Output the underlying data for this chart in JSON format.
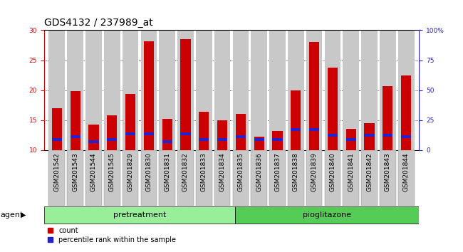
{
  "title": "GDS4132 / 237989_at",
  "samples": [
    "GSM201542",
    "GSM201543",
    "GSM201544",
    "GSM201545",
    "GSM201829",
    "GSM201830",
    "GSM201831",
    "GSM201832",
    "GSM201833",
    "GSM201834",
    "GSM201835",
    "GSM201836",
    "GSM201837",
    "GSM201838",
    "GSM201839",
    "GSM201840",
    "GSM201841",
    "GSM201842",
    "GSM201843",
    "GSM201844"
  ],
  "count_values": [
    17.0,
    19.8,
    14.2,
    15.8,
    19.4,
    28.2,
    15.2,
    28.5,
    16.4,
    15.0,
    16.0,
    12.2,
    13.2,
    20.0,
    28.0,
    23.8,
    13.5,
    14.5,
    20.7,
    22.4
  ],
  "percentile_values": [
    11.5,
    12.0,
    11.2,
    11.5,
    12.5,
    12.5,
    11.2,
    12.5,
    11.5,
    11.5,
    12.0,
    11.5,
    11.5,
    13.2,
    13.2,
    12.2,
    11.5,
    12.2,
    12.2,
    12.0
  ],
  "count_color": "#cc0000",
  "percentile_color": "#2222cc",
  "bar_bg_color": "#c8c8c8",
  "plot_bg_color": "#ffffff",
  "ylim_left": [
    10,
    30
  ],
  "ylim_right": [
    0,
    100
  ],
  "yticks_left": [
    10,
    15,
    20,
    25,
    30
  ],
  "yticks_right": [
    0,
    25,
    50,
    75,
    100
  ],
  "ytick_labels_right": [
    "0",
    "25",
    "50",
    "75",
    "100%"
  ],
  "pretreatment_samples": 10,
  "pioglitazone_samples": 10,
  "pretreatment_label": "pretreatment",
  "pioglitazone_label": "pioglitazone",
  "agent_label": "agent",
  "legend_count": "count",
  "legend_percentile": "percentile rank within the sample",
  "pretreatment_color": "#99ee99",
  "pioglitazone_color": "#55cc55",
  "bar_width": 0.55,
  "title_fontsize": 10,
  "tick_fontsize": 6.5,
  "label_fontsize": 8
}
